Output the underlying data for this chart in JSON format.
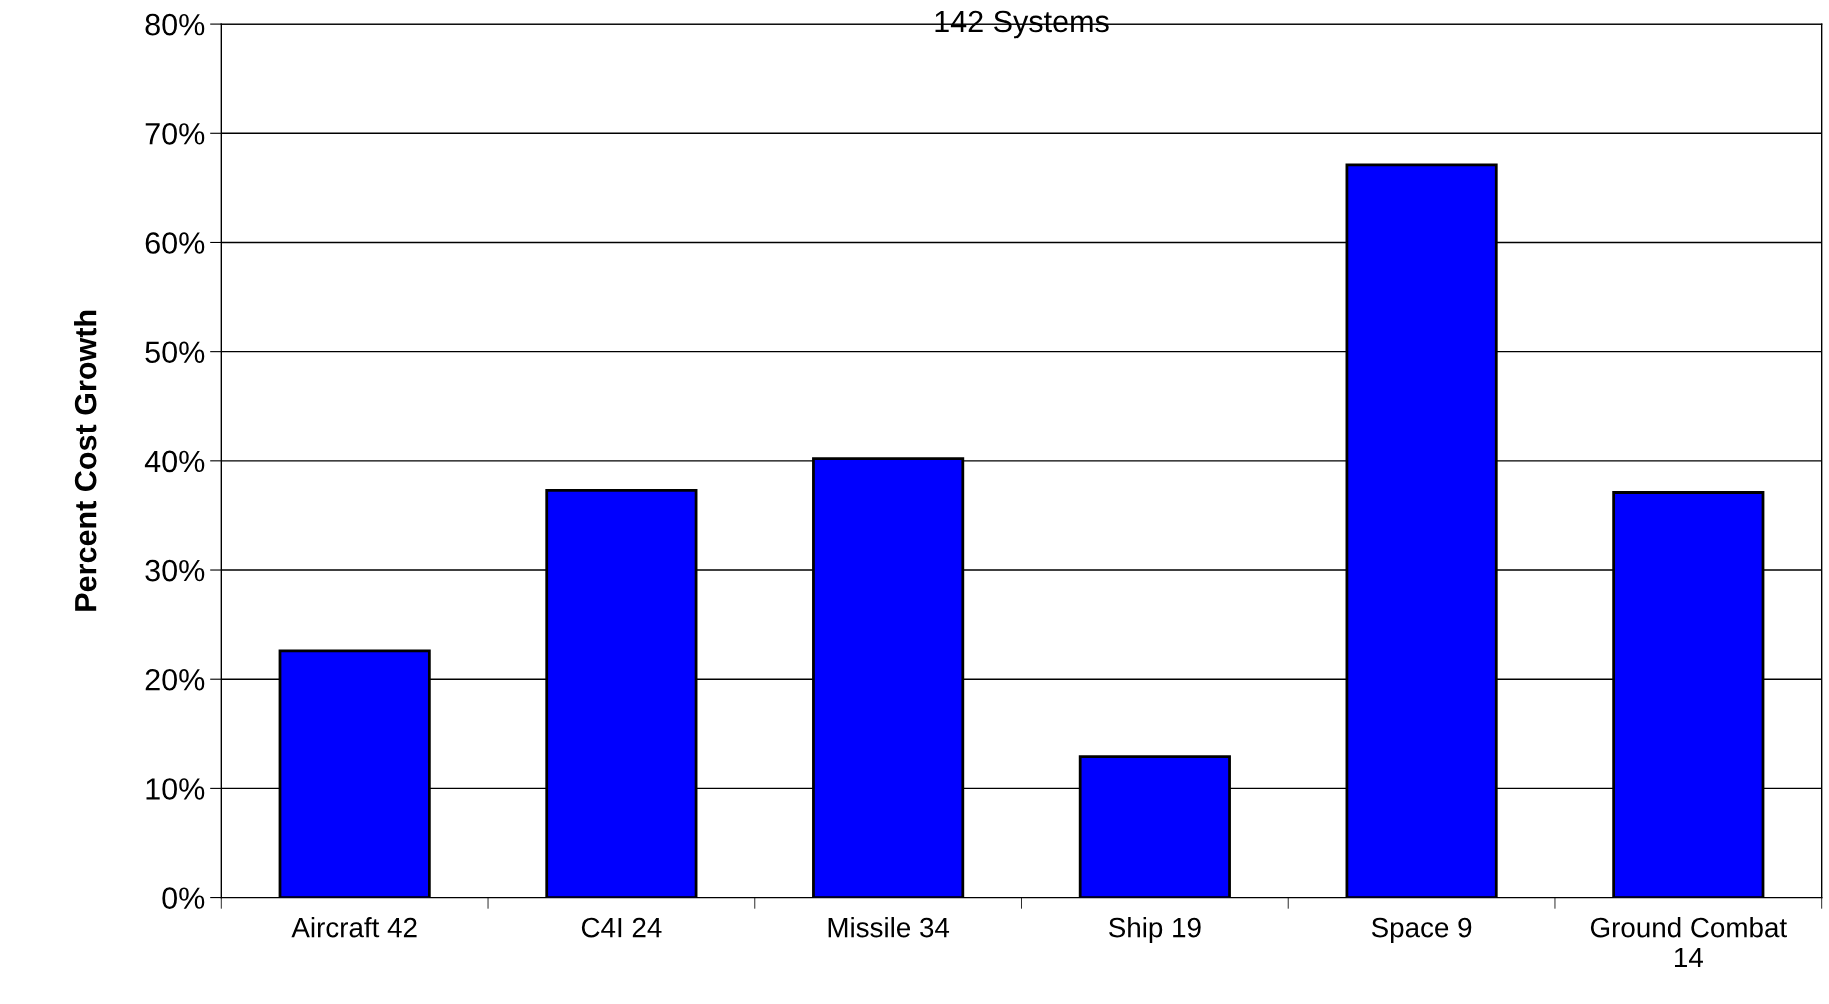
{
  "chart_data": {
    "type": "bar",
    "title": "142 Systems",
    "ylabel": "Percent Cost Growth",
    "categories": [
      "Aircraft 42",
      "C4I 24",
      "Missile 34",
      "Ship 19",
      "Space 9",
      "Ground Combat\n14"
    ],
    "values": [
      22.6,
      37.3,
      40.2,
      12.9,
      67.1,
      37.1
    ],
    "color": "#0000ff",
    "ylim": [
      0,
      80
    ],
    "yticks": [
      {
        "value": 0,
        "label": "0%"
      },
      {
        "value": 10,
        "label": "10%"
      },
      {
        "value": 20,
        "label": "20%"
      },
      {
        "value": 30,
        "label": "30%"
      },
      {
        "value": 40,
        "label": "40%"
      },
      {
        "value": 50,
        "label": "50%"
      },
      {
        "value": 60,
        "label": "60%"
      },
      {
        "value": 70,
        "label": "70%"
      },
      {
        "value": 80,
        "label": "80%"
      }
    ],
    "grid": "y",
    "legend": false
  }
}
